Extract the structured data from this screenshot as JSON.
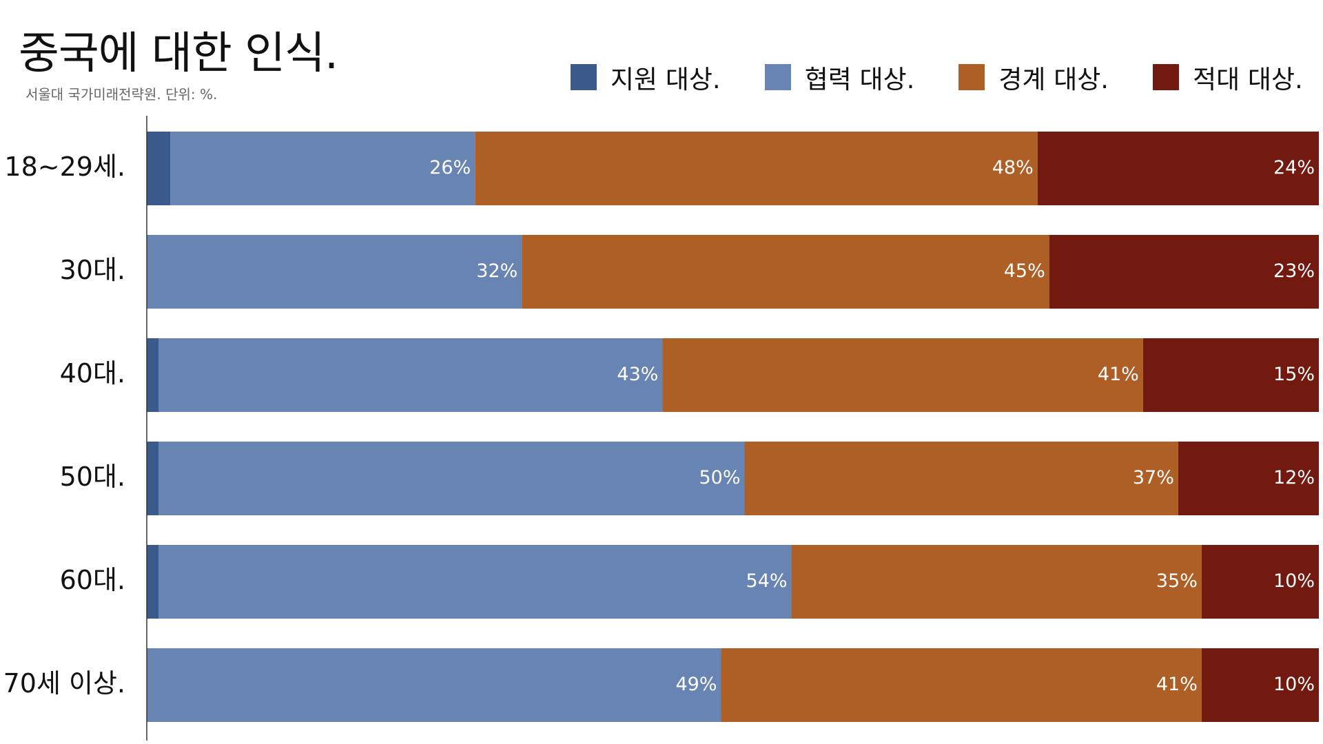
{
  "title": "중국에 대한 인식.",
  "subtitle": "서울대 국가미래전략원. 단위: %.",
  "legend": [
    {
      "label": "지원 대상.",
      "color": "#3a5a8c"
    },
    {
      "label": "협력 대상.",
      "color": "#6784b3"
    },
    {
      "label": "경계 대상.",
      "color": "#ae5f25"
    },
    {
      "label": "적대 대상.",
      "color": "#721a0f"
    }
  ],
  "chart_data": {
    "type": "bar",
    "orientation": "horizontal",
    "stacked": true,
    "categories": [
      "18~29세.",
      "30대.",
      "40대.",
      "50대.",
      "60대.",
      "70세 이상."
    ],
    "series": [
      {
        "name": "지원 대상.",
        "color": "#3a5a8c",
        "values": [
          2,
          0,
          1,
          1,
          1,
          0
        ],
        "labels": [
          "",
          "",
          "",
          "",
          "",
          ""
        ]
      },
      {
        "name": "협력 대상.",
        "color": "#6784b3",
        "values": [
          26,
          32,
          43,
          50,
          54,
          49
        ],
        "labels": [
          "26%",
          "32%",
          "43%",
          "50%",
          "54%",
          "49%"
        ]
      },
      {
        "name": "경계 대상.",
        "color": "#ae5f25",
        "values": [
          48,
          45,
          41,
          37,
          35,
          41
        ],
        "labels": [
          "48%",
          "45%",
          "41%",
          "37%",
          "35%",
          "41%"
        ]
      },
      {
        "name": "적대 대상.",
        "color": "#721a0f",
        "values": [
          24,
          23,
          15,
          12,
          10,
          10
        ],
        "labels": [
          "24%",
          "23%",
          "15%",
          "12%",
          "10%",
          "10%"
        ]
      }
    ],
    "xlim": [
      0,
      100
    ],
    "unit": "%",
    "legend_position": "top-right",
    "grid": false
  }
}
